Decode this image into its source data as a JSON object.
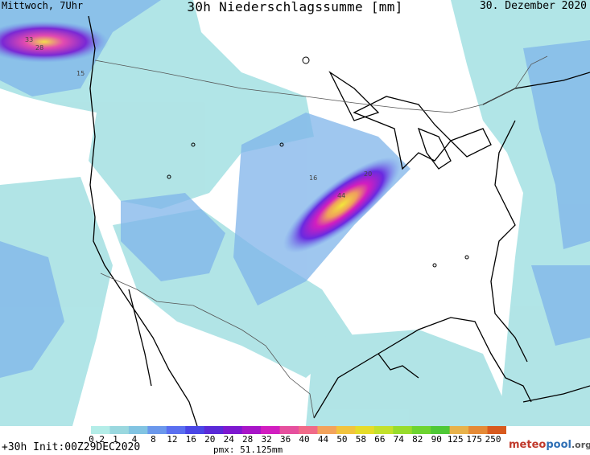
{
  "header": {
    "left": "Mittwoch, 7Uhr",
    "title": "30h Niederschlagssumme [mm]",
    "right": "30. Dezember 2020"
  },
  "legend": {
    "labels": [
      "0.2",
      "1",
      "4",
      "8",
      "12",
      "16",
      "20",
      "24",
      "28",
      "32",
      "36",
      "40",
      "44",
      "50",
      "58",
      "66",
      "74",
      "82",
      "90",
      "125",
      "175",
      "250"
    ],
    "colors": [
      "#b4ede8",
      "#9ad8df",
      "#82c4e2",
      "#6b98ec",
      "#5a6ff0",
      "#4a46e6",
      "#5a2ad8",
      "#7d18d0",
      "#a815c8",
      "#d21ec0",
      "#e6509e",
      "#f06a88",
      "#f3a35c",
      "#f2c43e",
      "#e6dc2a",
      "#c3e12c",
      "#98dc2c",
      "#6ed430",
      "#4ec836",
      "#e8b24a",
      "#e58a36",
      "#d85a1e"
    ]
  },
  "footer": {
    "left": "+30h Init:00Z29DEC2020",
    "middle": "pmx: 51.125mm",
    "brand_part1": "meteo",
    "brand_part2": "pool",
    "brand_part3": ".org"
  },
  "markers": [
    "33",
    "28",
    "15",
    "16",
    "20",
    "44"
  ]
}
